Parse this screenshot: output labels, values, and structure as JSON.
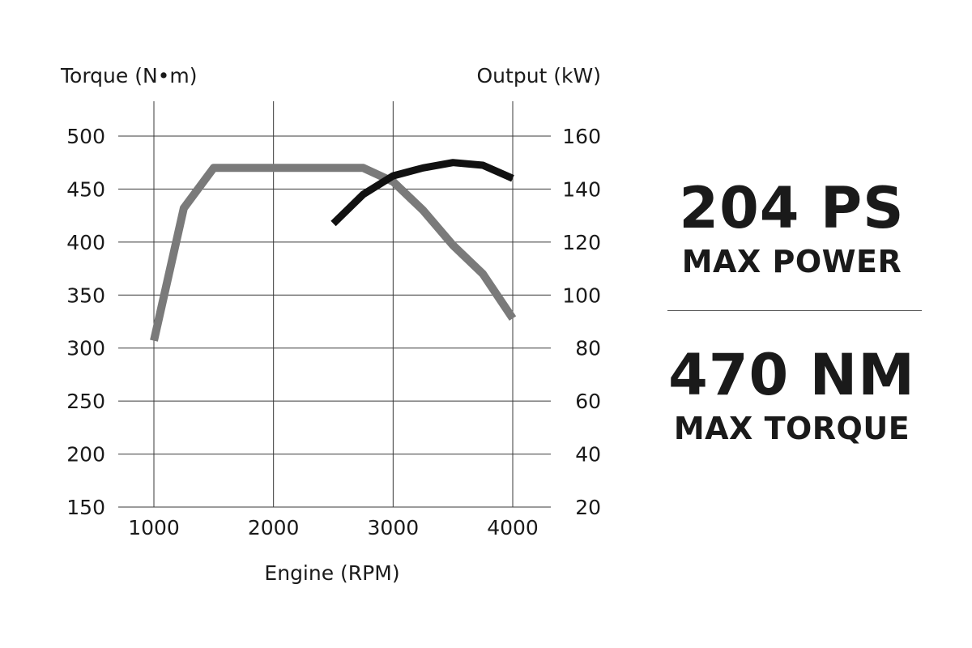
{
  "chart_data": {
    "type": "line",
    "xlabel": "Engine (RPM)",
    "ylabel_left": "Torque (N•m)",
    "ylabel_right": "Output (kW)",
    "x_ticks": [
      "1000",
      "2000",
      "3000",
      "4000"
    ],
    "y_left_ticks": [
      "500",
      "450",
      "400",
      "350",
      "300",
      "250",
      "200",
      "150"
    ],
    "y_right_ticks": [
      "160",
      "140",
      "120",
      "100",
      "80",
      "60",
      "40",
      "20"
    ],
    "xlim": [
      1000,
      4000
    ],
    "ylim_left": [
      150,
      500
    ],
    "ylim_right": [
      20,
      160
    ],
    "grid": true,
    "series": [
      {
        "axis": "left",
        "color": "#7a7a7a",
        "x": [
          1000,
          1250,
          1500,
          2000,
          2500,
          2750,
          3000,
          3250,
          3500,
          3750,
          4000
        ],
        "y": [
          307,
          432,
          470,
          470,
          470,
          470,
          457,
          430,
          397,
          370,
          328
        ]
      },
      {
        "axis": "right",
        "color": "#111111",
        "x": [
          2500,
          2750,
          3000,
          3250,
          3500,
          3750,
          4000
        ],
        "y": [
          127,
          138,
          145,
          148,
          150,
          149,
          144
        ]
      }
    ]
  },
  "specs": {
    "power_value": "204 PS",
    "power_label": "MAX POWER",
    "torque_value": "470 NM",
    "torque_label": "MAX TORQUE"
  }
}
